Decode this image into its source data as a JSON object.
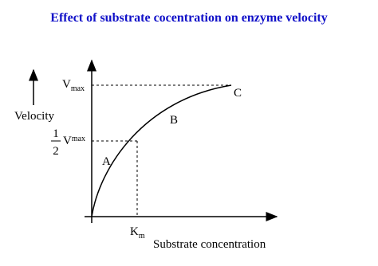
{
  "title": "Effect of substrate cocentration on enzyme velocity",
  "y_axis": {
    "label": "Velocity"
  },
  "x_axis": {
    "label": "Substrate concentration"
  },
  "vmax": {
    "symbol": "V",
    "subscript": "max"
  },
  "half_vmax": {
    "numerator": "1",
    "denominator": "2",
    "symbol": "V",
    "subscript": "max"
  },
  "km": {
    "symbol": "K",
    "subscript": "m"
  },
  "regions": [
    "A",
    "B",
    "C"
  ]
}
